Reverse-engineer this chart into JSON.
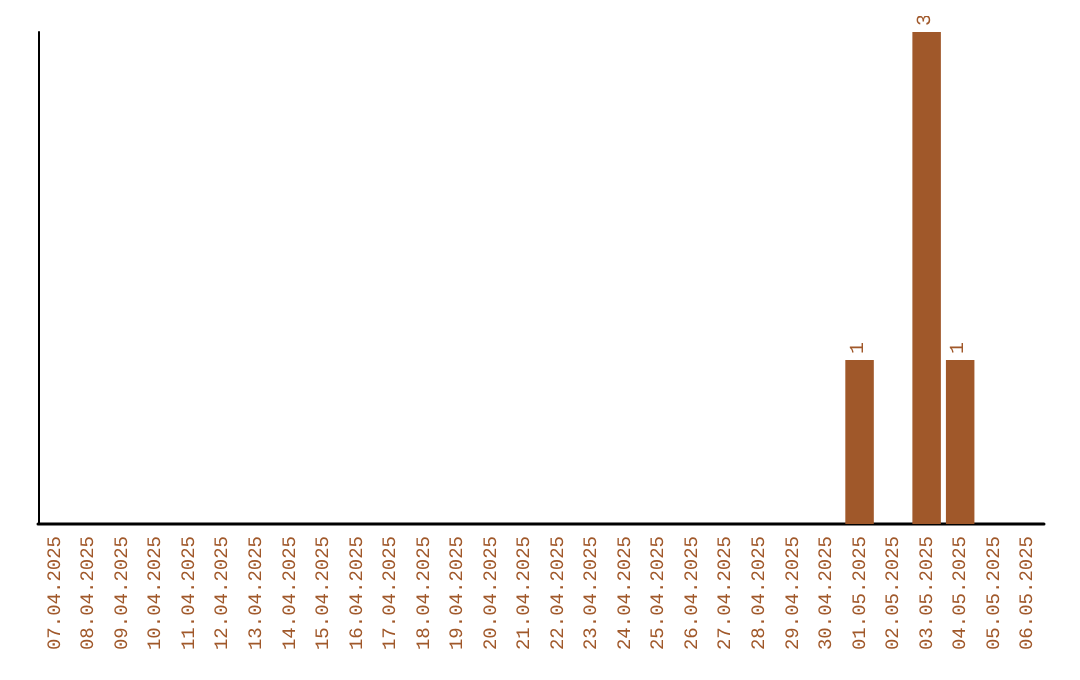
{
  "chart_data": {
    "type": "bar",
    "categories": [
      "07.04.2025",
      "08.04.2025",
      "09.04.2025",
      "10.04.2025",
      "11.04.2025",
      "12.04.2025",
      "13.04.2025",
      "14.04.2025",
      "15.04.2025",
      "16.04.2025",
      "17.04.2025",
      "18.04.2025",
      "19.04.2025",
      "20.04.2025",
      "21.04.2025",
      "22.04.2025",
      "23.04.2025",
      "24.04.2025",
      "25.04.2025",
      "26.04.2025",
      "27.04.2025",
      "28.04.2025",
      "29.04.2025",
      "30.04.2025",
      "01.05.2025",
      "02.05.2025",
      "03.05.2025",
      "04.05.2025",
      "05.05.2025",
      "06.05.2025"
    ],
    "values": [
      null,
      null,
      null,
      null,
      null,
      null,
      null,
      null,
      null,
      null,
      null,
      null,
      null,
      null,
      null,
      null,
      null,
      null,
      null,
      null,
      null,
      null,
      null,
      null,
      1,
      null,
      3,
      1,
      null,
      null
    ],
    "color": "#a0582a",
    "data_labels": true
  }
}
